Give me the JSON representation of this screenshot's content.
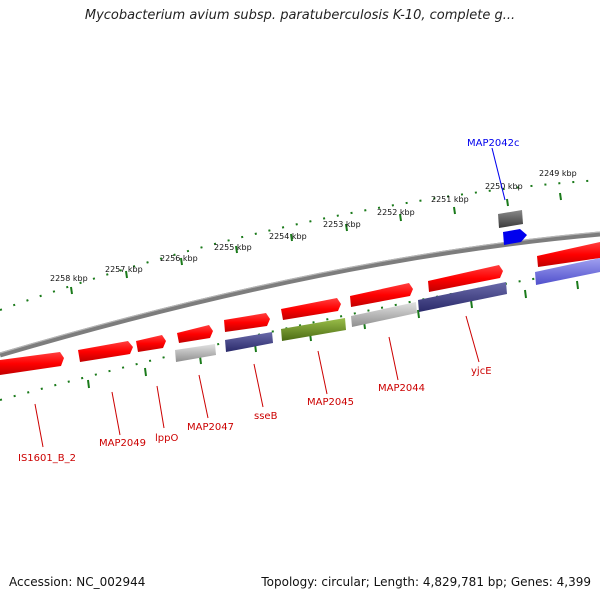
{
  "title": "Mycobacterium avium subsp. paratuberculosis K-10, complete g...",
  "footer": {
    "accession": "Accession: NC_002944",
    "summary": "Topology: circular; Length: 4,829,781 bp; Genes: 4,399"
  },
  "scale_labels": [
    "2258 kbp",
    "2257 kbp",
    "2256 kbp",
    "2255 kbp",
    "2254 kbp",
    "2253 kbp",
    "2252 kbp",
    "2251 kbp",
    "2250 kbp",
    "2249 kbp"
  ],
  "genes": [
    {
      "name": "MAP2042c",
      "color": "#0000ee"
    },
    {
      "name": "yjcE",
      "color": "#cc0000"
    },
    {
      "name": "MAP2044",
      "color": "#cc0000"
    },
    {
      "name": "MAP2045",
      "color": "#cc0000"
    },
    {
      "name": "sseB",
      "color": "#cc0000"
    },
    {
      "name": "MAP2047",
      "color": "#cc0000"
    },
    {
      "name": "lppO",
      "color": "#cc0000"
    },
    {
      "name": "MAP2049",
      "color": "#cc0000"
    },
    {
      "name": "IS1601_B_2",
      "color": "#cc0000"
    }
  ],
  "colors": {
    "cds": "#ff0000",
    "backbone": "#808080",
    "ticks": "#1a7a1a",
    "gc_high": "#444488",
    "gc_olive": "#6b8e23",
    "gc_gray": "#aaaaaa",
    "gc_light_blue": "#7777dd",
    "label_red": "#cc0000",
    "label_blue": "#0000ee"
  }
}
